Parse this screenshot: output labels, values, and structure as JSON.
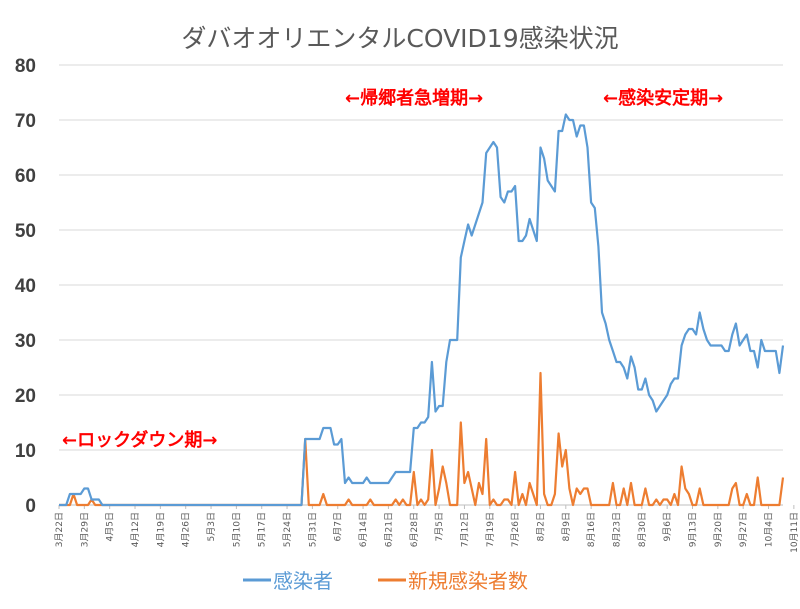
{
  "chart_data": {
    "type": "line",
    "title": "ダバオオリエンタルCOVID19感染状況",
    "ylim": [
      0,
      80
    ],
    "yticks": [
      "0",
      "10",
      "20",
      "30",
      "40",
      "50",
      "60",
      "70",
      "80"
    ],
    "grid": true,
    "legend_position": "bottom",
    "x_tick_labels": [
      "3月22日",
      "3月29日",
      "4月5日",
      "4月12日",
      "4月19日",
      "4月26日",
      "5月3日",
      "5月10日",
      "5月17日",
      "5月24日",
      "5月31日",
      "6月7日",
      "6月14日",
      "6月21日",
      "6月28日",
      "7月5日",
      "7月12日",
      "7月19日",
      "7月26日",
      "8月2日",
      "8月9日",
      "8月16日",
      "8月23日",
      "8月30日",
      "9月6日",
      "9月13日",
      "9月20日",
      "9月27日",
      "10月4日",
      "10月11日"
    ],
    "annotations": [
      {
        "text": "←ロックダウン期→"
      },
      {
        "text": "←帰郷者急増期→"
      },
      {
        "text": "←感染安定期→"
      }
    ],
    "series": [
      {
        "name": "感染者",
        "color": "#5b9bd5",
        "points": [
          [
            0,
            0
          ],
          [
            2,
            0
          ],
          [
            3,
            2
          ],
          [
            6,
            2
          ],
          [
            7,
            3
          ],
          [
            8,
            3
          ],
          [
            9,
            1
          ],
          [
            11,
            1
          ],
          [
            12,
            0
          ],
          [
            67,
            0
          ],
          [
            68,
            12
          ],
          [
            72,
            12
          ],
          [
            73,
            14
          ],
          [
            75,
            14
          ],
          [
            76,
            11
          ],
          [
            77,
            11
          ],
          [
            78,
            12
          ],
          [
            79,
            4
          ],
          [
            80,
            5
          ],
          [
            81,
            4
          ],
          [
            84,
            4
          ],
          [
            85,
            5
          ],
          [
            86,
            4
          ],
          [
            91,
            4
          ],
          [
            92,
            5
          ],
          [
            93,
            6
          ],
          [
            97,
            6
          ],
          [
            98,
            14
          ],
          [
            99,
            14
          ],
          [
            100,
            15
          ],
          [
            101,
            15
          ],
          [
            102,
            16
          ],
          [
            103,
            26
          ],
          [
            104,
            17
          ],
          [
            105,
            18
          ],
          [
            106,
            18
          ],
          [
            107,
            26
          ],
          [
            108,
            30
          ],
          [
            110,
            30
          ],
          [
            111,
            45
          ],
          [
            112,
            48
          ],
          [
            113,
            51
          ],
          [
            114,
            49
          ],
          [
            115,
            51
          ],
          [
            116,
            53
          ],
          [
            117,
            55
          ],
          [
            118,
            64
          ],
          [
            119,
            65
          ],
          [
            120,
            66
          ],
          [
            121,
            65
          ],
          [
            122,
            56
          ],
          [
            123,
            55
          ],
          [
            124,
            57
          ],
          [
            125,
            57
          ],
          [
            126,
            58
          ],
          [
            127,
            48
          ],
          [
            128,
            48
          ],
          [
            129,
            49
          ],
          [
            130,
            52
          ],
          [
            131,
            50
          ],
          [
            132,
            48
          ],
          [
            133,
            65
          ],
          [
            134,
            63
          ],
          [
            135,
            59
          ],
          [
            136,
            58
          ],
          [
            137,
            57
          ],
          [
            138,
            68
          ],
          [
            139,
            68
          ],
          [
            140,
            71
          ],
          [
            141,
            70
          ],
          [
            142,
            70
          ],
          [
            143,
            67
          ],
          [
            144,
            69
          ],
          [
            145,
            69
          ],
          [
            146,
            65
          ],
          [
            147,
            55
          ],
          [
            148,
            54
          ],
          [
            149,
            47
          ],
          [
            150,
            35
          ],
          [
            151,
            33
          ],
          [
            152,
            30
          ],
          [
            153,
            28
          ],
          [
            154,
            26
          ],
          [
            155,
            26
          ],
          [
            156,
            25
          ],
          [
            157,
            23
          ],
          [
            158,
            27
          ],
          [
            159,
            25
          ],
          [
            160,
            21
          ],
          [
            161,
            21
          ],
          [
            162,
            23
          ],
          [
            163,
            20
          ],
          [
            164,
            19
          ],
          [
            165,
            17
          ],
          [
            166,
            18
          ],
          [
            167,
            19
          ],
          [
            168,
            20
          ],
          [
            169,
            22
          ],
          [
            170,
            23
          ],
          [
            171,
            23
          ],
          [
            172,
            29
          ],
          [
            173,
            31
          ],
          [
            174,
            32
          ],
          [
            175,
            32
          ],
          [
            176,
            31
          ],
          [
            177,
            35
          ],
          [
            178,
            32
          ],
          [
            179,
            30
          ],
          [
            180,
            29
          ],
          [
            183,
            29
          ],
          [
            184,
            28
          ],
          [
            185,
            28
          ],
          [
            186,
            31
          ],
          [
            187,
            33
          ],
          [
            188,
            29
          ],
          [
            189,
            30
          ],
          [
            190,
            31
          ],
          [
            191,
            28
          ],
          [
            192,
            28
          ],
          [
            193,
            25
          ],
          [
            194,
            30
          ],
          [
            195,
            28
          ],
          [
            198,
            28
          ],
          [
            199,
            24
          ],
          [
            200,
            29
          ]
        ]
      },
      {
        "name": "新規感染者数",
        "color": "#ed7d31",
        "points": [
          [
            0,
            0
          ],
          [
            3,
            0
          ],
          [
            4,
            2
          ],
          [
            5,
            0
          ],
          [
            8,
            0
          ],
          [
            9,
            1
          ],
          [
            10,
            0
          ],
          [
            67,
            0
          ],
          [
            68,
            12
          ],
          [
            69,
            0
          ],
          [
            72,
            0
          ],
          [
            73,
            2
          ],
          [
            74,
            0
          ],
          [
            79,
            0
          ],
          [
            80,
            1
          ],
          [
            81,
            0
          ],
          [
            85,
            0
          ],
          [
            86,
            1
          ],
          [
            87,
            0
          ],
          [
            92,
            0
          ],
          [
            93,
            1
          ],
          [
            94,
            0
          ],
          [
            95,
            1
          ],
          [
            96,
            0
          ],
          [
            97,
            0
          ],
          [
            98,
            6
          ],
          [
            99,
            0
          ],
          [
            100,
            1
          ],
          [
            101,
            0
          ],
          [
            102,
            1
          ],
          [
            103,
            10
          ],
          [
            104,
            0
          ],
          [
            105,
            3
          ],
          [
            106,
            7
          ],
          [
            107,
            4
          ],
          [
            108,
            0
          ],
          [
            109,
            0
          ],
          [
            110,
            0
          ],
          [
            111,
            15
          ],
          [
            112,
            4
          ],
          [
            113,
            6
          ],
          [
            114,
            3
          ],
          [
            115,
            0
          ],
          [
            116,
            4
          ],
          [
            117,
            2
          ],
          [
            118,
            12
          ],
          [
            119,
            0
          ],
          [
            120,
            1
          ],
          [
            121,
            0
          ],
          [
            122,
            0
          ],
          [
            123,
            1
          ],
          [
            124,
            1
          ],
          [
            125,
            0
          ],
          [
            126,
            6
          ],
          [
            127,
            0
          ],
          [
            128,
            2
          ],
          [
            129,
            0
          ],
          [
            130,
            4
          ],
          [
            131,
            2
          ],
          [
            132,
            0
          ],
          [
            133,
            24
          ],
          [
            134,
            2
          ],
          [
            135,
            0
          ],
          [
            136,
            0
          ],
          [
            137,
            2
          ],
          [
            138,
            13
          ],
          [
            139,
            7
          ],
          [
            140,
            10
          ],
          [
            141,
            3
          ],
          [
            142,
            0
          ],
          [
            143,
            3
          ],
          [
            144,
            2
          ],
          [
            145,
            3
          ],
          [
            146,
            3
          ],
          [
            147,
            0
          ],
          [
            148,
            0
          ],
          [
            152,
            0
          ],
          [
            153,
            4
          ],
          [
            154,
            0
          ],
          [
            155,
            0
          ],
          [
            156,
            3
          ],
          [
            157,
            0
          ],
          [
            158,
            4
          ],
          [
            159,
            0
          ],
          [
            160,
            0
          ],
          [
            161,
            0
          ],
          [
            162,
            3
          ],
          [
            163,
            0
          ],
          [
            164,
            0
          ],
          [
            165,
            1
          ],
          [
            166,
            0
          ],
          [
            167,
            1
          ],
          [
            168,
            1
          ],
          [
            169,
            0
          ],
          [
            170,
            2
          ],
          [
            171,
            0
          ],
          [
            172,
            7
          ],
          [
            173,
            3
          ],
          [
            174,
            2
          ],
          [
            175,
            0
          ],
          [
            176,
            0
          ],
          [
            177,
            3
          ],
          [
            178,
            0
          ],
          [
            179,
            0
          ],
          [
            185,
            0
          ],
          [
            186,
            3
          ],
          [
            187,
            4
          ],
          [
            188,
            0
          ],
          [
            189,
            0
          ],
          [
            190,
            2
          ],
          [
            191,
            0
          ],
          [
            192,
            0
          ],
          [
            193,
            5
          ],
          [
            194,
            0
          ],
          [
            199,
            0
          ],
          [
            200,
            5
          ]
        ]
      }
    ]
  }
}
